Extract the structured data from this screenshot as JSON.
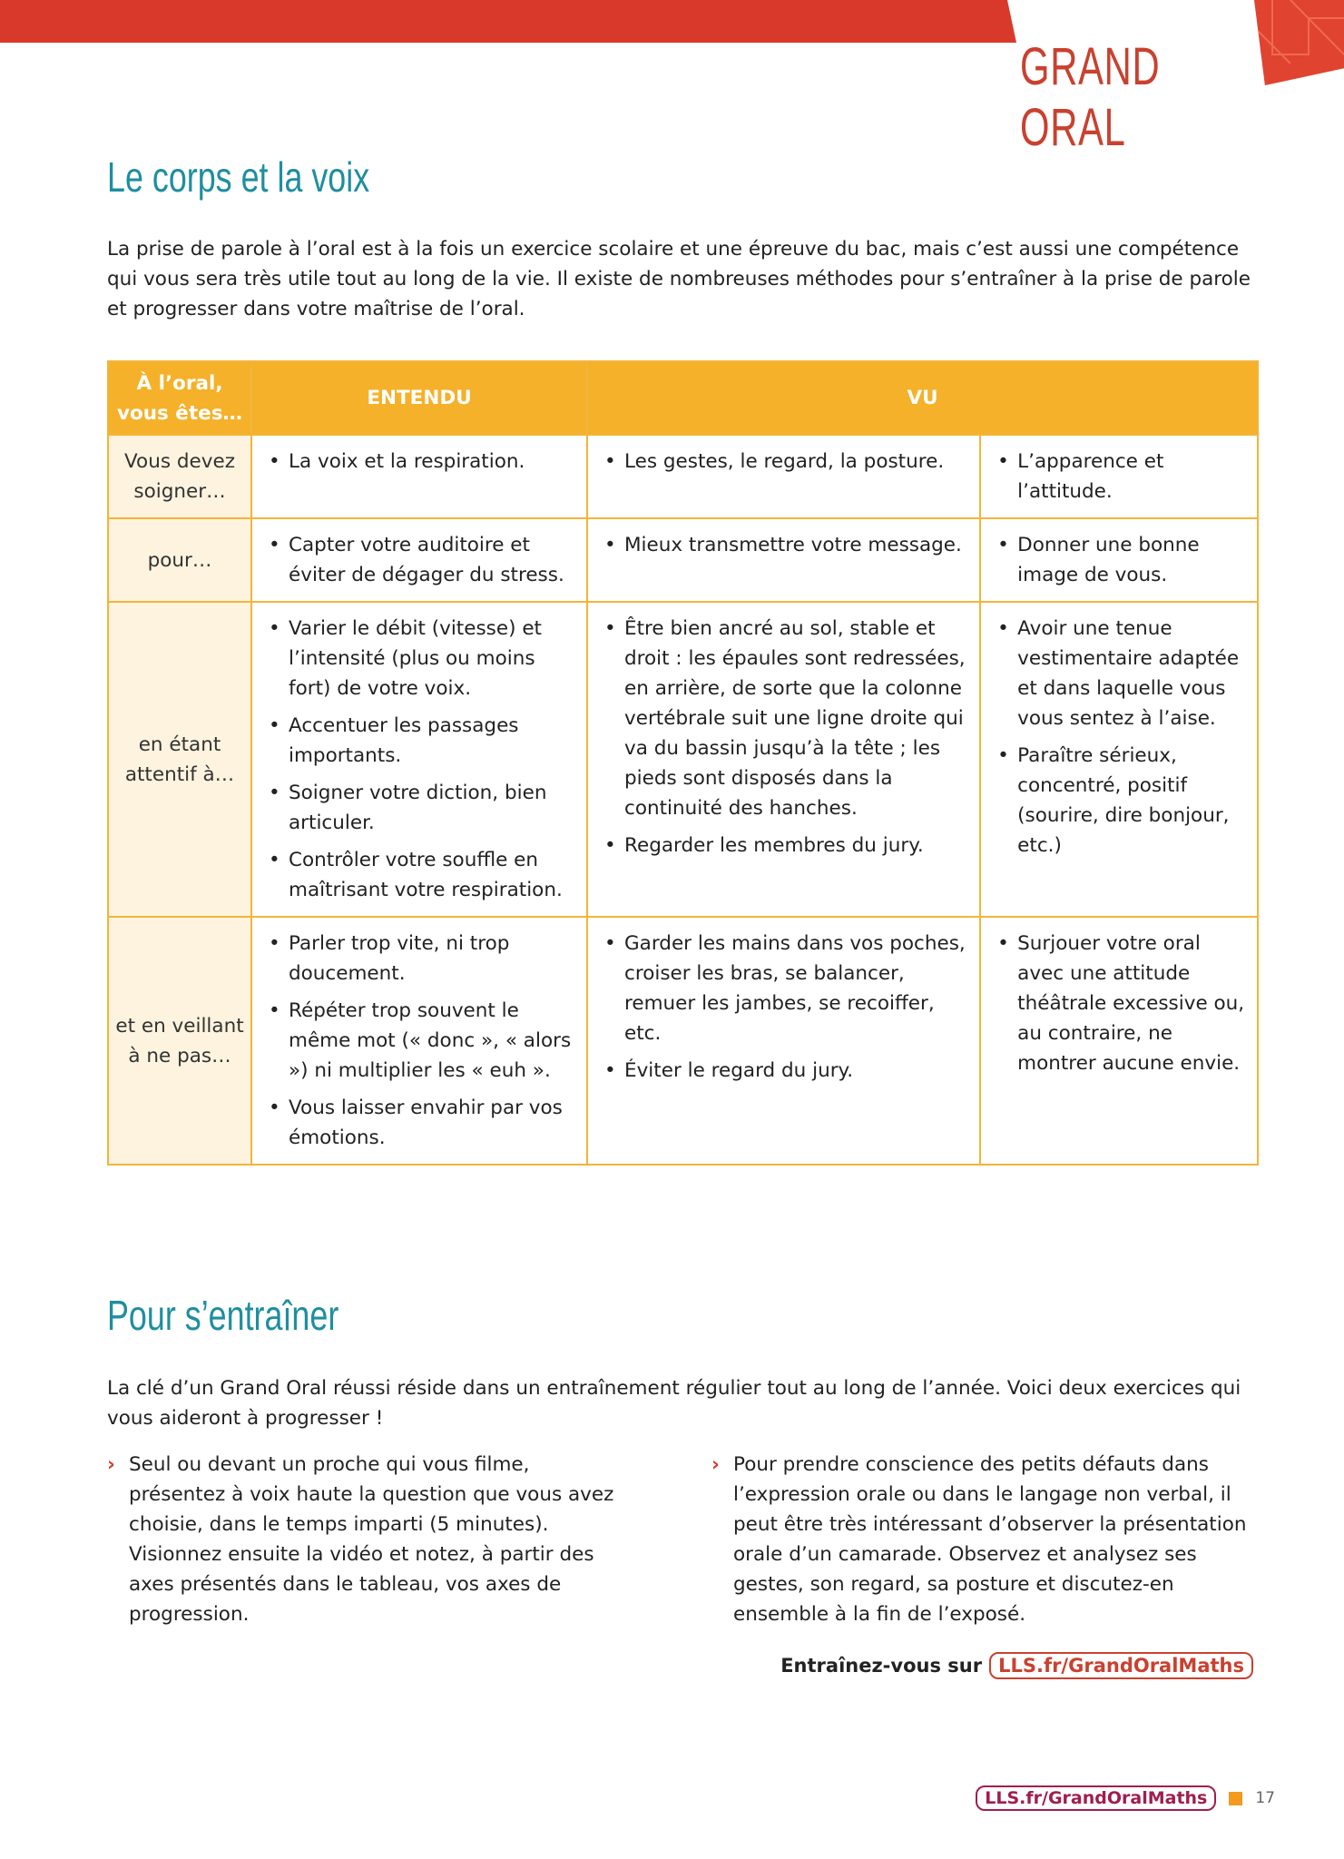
{
  "header": {
    "brand": "GRAND ORAL"
  },
  "section1": {
    "title": "Le corps et la voix",
    "intro": "La prise de parole à l’oral est à la fois un exercice scolaire et une épreuve du bac, mais c’est aussi une compétence qui vous sera très utile tout au long de la vie. Il existe de nombreuses méthodes pour s’entraîner à la prise de parole et progresser dans votre maîtrise de l’oral."
  },
  "table": {
    "headers": [
      "À l’oral, vous êtes…",
      "ENTENDU",
      "VU"
    ],
    "rows": [
      {
        "label": "Vous devez soigner…",
        "cols": [
          [
            "La voix et la respiration."
          ],
          [
            "Les gestes, le regard, la posture."
          ],
          [
            "L’apparence et l’attitude."
          ]
        ]
      },
      {
        "label": "pour…",
        "cols": [
          [
            "Capter votre auditoire et éviter de dégager du stress."
          ],
          [
            "Mieux transmettre votre message."
          ],
          [
            "Donner une bonne image de vous."
          ]
        ]
      },
      {
        "label": "en étant attentif à…",
        "cols": [
          [
            "Varier le débit (vitesse) et l’intensité (plus ou moins fort) de votre voix.",
            "Accentuer les passages importants.",
            "Soigner votre diction, bien articuler.",
            "Contrôler votre souffle en maîtrisant votre respiration."
          ],
          [
            "Être bien ancré au sol, stable et droit : les épaules sont redressées, en arrière, de sorte que la colonne vertébrale suit une ligne droite qui va du bassin jusqu’à la tête ; les pieds sont disposés dans la continuité des hanches.",
            "Regarder les membres du jury."
          ],
          [
            "Avoir une tenue vestimentaire adaptée et dans laquelle vous vous sentez à l’aise.",
            "Paraître sérieux, concentré, positif (sourire, dire bonjour, etc.)"
          ]
        ]
      },
      {
        "label": "et en veillant à ne pas…",
        "cols": [
          [
            "Parler trop vite, ni trop doucement.",
            "Répéter trop souvent le même mot (« donc », « alors ») ni multiplier les « euh ».",
            "Vous laisser envahir par vos émotions."
          ],
          [
            "Garder les mains dans vos poches, croiser les bras, se balancer, remuer les jambes, se recoiffer, etc.",
            "Éviter le regard du jury."
          ],
          [
            "Surjouer votre oral avec une attitude théâtrale excessive ou, au contraire, ne montrer aucune envie."
          ]
        ]
      }
    ]
  },
  "section2": {
    "title": "Pour s’entraîner",
    "intro": "La clé d’un Grand Oral réussi réside dans un entraînement régulier tout au long de l’année. Voici deux exercices qui vous aideront à progresser !",
    "exercises": [
      "Seul ou devant un proche qui vous filme, présentez à voix haute la question que vous avez choisie, dans le temps imparti (5 minutes). Visionnez ensuite la vidéo et notez, à partir des axes présentés dans le tableau, vos axes de progression.",
      "Pour prendre conscience des petits défauts dans l’expression orale ou dans le langage non verbal, il peut être très intéressant d’observer la présentation orale d’un camarade. Observez et analysez ses gestes, son regard, sa posture et discutez-en ensemble à la fin de l’exposé."
    ],
    "cta_label": "Entraînez-vous sur",
    "cta_link": "LLS.fr/GrandOralMaths"
  },
  "footer": {
    "link": "LLS.fr/GrandOralMaths",
    "page": "17"
  },
  "colors": {
    "red": "#d9392a",
    "teal": "#1f8ea0",
    "yellow": "#f5b12a"
  }
}
